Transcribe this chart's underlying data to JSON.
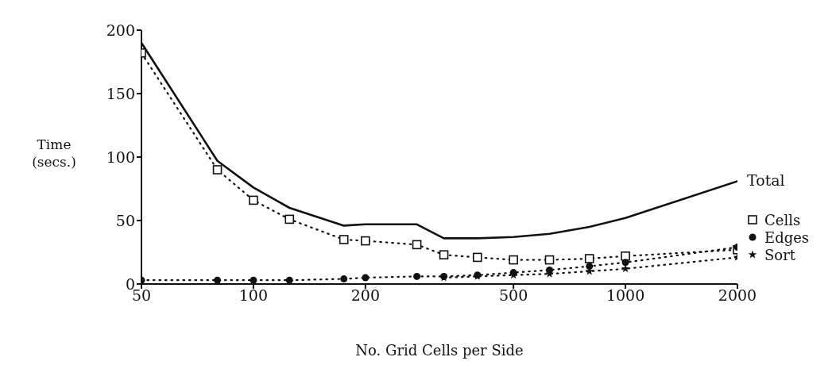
{
  "chart_data": {
    "type": "line",
    "xlabel": "No. Grid Cells per Side",
    "ylabel": "Time\n(secs.)",
    "x": [
      50,
      80,
      100,
      125,
      175,
      200,
      275,
      325,
      400,
      500,
      625,
      800,
      1000,
      2000
    ],
    "series": [
      {
        "name": "Total",
        "color": "#111111",
        "marker": "none",
        "line_style": "solid",
        "values": [
          190,
          97,
          76,
          60,
          46,
          47,
          47,
          36,
          36,
          37,
          39.5,
          45,
          52,
          81
        ]
      },
      {
        "name": "Cells",
        "color": "#111111",
        "marker": "square",
        "line_style": "dotted",
        "values": [
          182,
          90,
          66,
          51,
          35,
          34,
          31,
          23,
          21,
          19,
          19,
          20,
          22,
          27
        ]
      },
      {
        "name": "Edges",
        "color": "#111111",
        "marker": "circle",
        "line_style": "dotted",
        "values": [
          3,
          3,
          3,
          3,
          4,
          5,
          6,
          6,
          7,
          9,
          11,
          14,
          17,
          29
        ]
      },
      {
        "name": "Sort",
        "color": "#111111",
        "marker": "star",
        "line_style": "dotted",
        "values": [
          null,
          null,
          null,
          null,
          null,
          null,
          null,
          5,
          6,
          7,
          8,
          10,
          12,
          21
        ]
      }
    ],
    "xlim": [
      50,
      2000
    ],
    "xticks": [
      50,
      100,
      200,
      500,
      1000,
      2000
    ],
    "log": "x",
    "ylim": [
      0,
      200
    ],
    "yticks": [
      0,
      50,
      100,
      150,
      200
    ],
    "grid": false,
    "legend": "right"
  }
}
